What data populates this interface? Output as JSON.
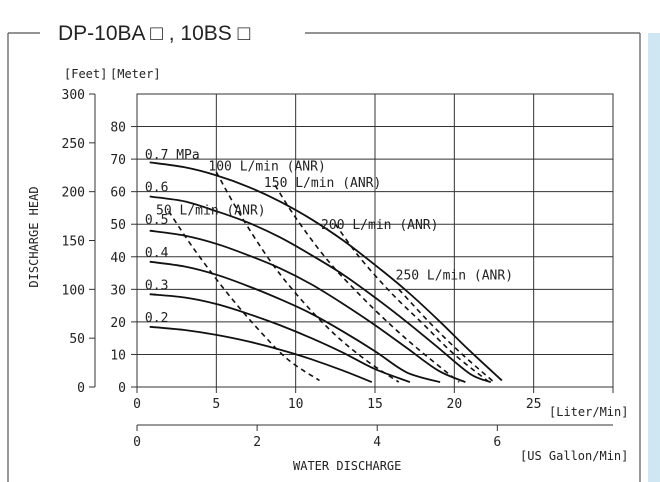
{
  "figure": {
    "title": "DP-10BA □ , 10BS □",
    "accent_color": "#cfe7f3"
  },
  "chart_data": {
    "type": "line",
    "title": "DP-10BA □ , 10BS □",
    "xlabel": "WATER  DISCHARGE",
    "ylabel": "DISCHARGE  HEAD",
    "x_unit_primary": "[Liter/Min]",
    "x_unit_secondary": "[US Gallon/Min]",
    "y_unit_left_outer": "[Feet]",
    "y_unit_left_inner": "[Meter]",
    "xlim": [
      0,
      30
    ],
    "ylim_meter": [
      0,
      90
    ],
    "ylim_feet": [
      0,
      300
    ],
    "x_ticks": [
      "0",
      "5",
      "10",
      "15",
      "20",
      "25"
    ],
    "x_ticks_values": [
      0,
      5,
      10,
      15,
      20,
      25
    ],
    "x2_ticks": [
      "0",
      "2",
      "4",
      "6"
    ],
    "x2_ticks_values": [
      0,
      2,
      4,
      6
    ],
    "y_ticks_meter": [
      "0",
      "10",
      "20",
      "30",
      "40",
      "50",
      "60",
      "70",
      "80"
    ],
    "y_ticks_meter_values": [
      0,
      10,
      20,
      30,
      40,
      50,
      60,
      70,
      80
    ],
    "y_ticks_feet": [
      "0",
      "50",
      "100",
      "150",
      "200",
      "250",
      "300"
    ],
    "y_ticks_feet_values": [
      0,
      50,
      100,
      150,
      200,
      250,
      300
    ],
    "grid": true,
    "series": [
      {
        "name": "0.7 MPa",
        "style": "solid",
        "x": [
          0.8,
          3,
          5,
          7,
          9,
          11,
          13,
          15,
          17,
          19,
          21,
          23
        ],
        "y": [
          69,
          67.5,
          65,
          61.5,
          57,
          51.5,
          45,
          37.5,
          29.5,
          20.5,
          11,
          2
        ]
      },
      {
        "name": "0.6",
        "style": "solid",
        "x": [
          0.8,
          3,
          5,
          7,
          9,
          11,
          13,
          15,
          17,
          19,
          21,
          22.3
        ],
        "y": [
          58.5,
          57,
          54,
          50.5,
          46,
          40.5,
          34.5,
          27.5,
          20,
          12,
          4,
          1.5
        ]
      },
      {
        "name": "0.5",
        "style": "solid",
        "x": [
          0.8,
          3,
          5,
          7,
          9,
          11,
          13,
          15,
          17,
          19,
          20.7
        ],
        "y": [
          48,
          46.5,
          44,
          40.5,
          36.5,
          31.5,
          25.5,
          19,
          12,
          5,
          1.5
        ]
      },
      {
        "name": "0.4",
        "style": "solid",
        "x": [
          0.8,
          3,
          5,
          7,
          9,
          11,
          13,
          15,
          17,
          19.1
        ],
        "y": [
          38.5,
          37,
          34.5,
          31,
          27,
          22.5,
          17,
          11,
          4.5,
          1.5
        ]
      },
      {
        "name": "0.3",
        "style": "solid",
        "x": [
          0.8,
          3,
          5,
          7,
          9,
          11,
          13,
          15,
          17.2
        ],
        "y": [
          28.5,
          27.5,
          25.5,
          22.5,
          19,
          15,
          10.5,
          5.5,
          1.5
        ]
      },
      {
        "name": "0.2",
        "style": "solid",
        "x": [
          0.8,
          3,
          5,
          7,
          9,
          11,
          13,
          14.8
        ],
        "y": [
          18.5,
          17.5,
          16,
          14,
          11.5,
          8.5,
          5,
          1.5
        ]
      },
      {
        "name": "50 L/min (ANR)",
        "style": "dashed",
        "x": [
          2.0,
          3.5,
          5.5,
          7.5,
          9.5,
          11.5
        ],
        "y": [
          54,
          43,
          30,
          18.5,
          8.5,
          2
        ]
      },
      {
        "name": "100 L/min (ANR)",
        "style": "dashed",
        "x": [
          5.0,
          6.5,
          8.5,
          10.5,
          12.5,
          14.5,
          16.5
        ],
        "y": [
          66,
          53,
          38,
          26,
          16,
          8,
          1.5
        ]
      },
      {
        "name": "150 L/min (ANR)",
        "style": "dashed",
        "x": [
          8.7,
          10,
          12,
          14,
          16,
          18,
          20.3
        ],
        "y": [
          62,
          52,
          39,
          28.5,
          19,
          10.5,
          1.5
        ]
      },
      {
        "name": "200 L/min (ANR)",
        "style": "dashed",
        "x": [
          12.5,
          14,
          16,
          18,
          20,
          22.2
        ],
        "y": [
          50,
          40,
          29,
          19.5,
          10,
          1.5
        ]
      },
      {
        "name": "250 L/min (ANR)",
        "style": "dashed",
        "x": [
          16.5,
          18.5,
          20.5,
          22.5
        ],
        "y": [
          30,
          19.5,
          10,
          1.5
        ]
      }
    ],
    "annotations": [
      {
        "text": "0.7 MPa",
        "x": 0.5,
        "y": 70
      },
      {
        "text": "0.6",
        "x": 0.5,
        "y": 60
      },
      {
        "text": "0.5",
        "x": 0.5,
        "y": 50
      },
      {
        "text": "0.4",
        "x": 0.5,
        "y": 40
      },
      {
        "text": "0.3",
        "x": 0.5,
        "y": 30
      },
      {
        "text": "0.2",
        "x": 0.5,
        "y": 20
      },
      {
        "text": "50 L/min (ANR)",
        "x": 1.2,
        "y": 53
      },
      {
        "text": "100 L/min (ANR)",
        "x": 4.5,
        "y": 66.5
      },
      {
        "text": "150 L/min (ANR)",
        "x": 8.0,
        "y": 61.5
      },
      {
        "text": "200 L/min (ANR)",
        "x": 11.6,
        "y": 48.5
      },
      {
        "text": "250 L/min (ANR)",
        "x": 16.3,
        "y": 33
      }
    ]
  }
}
